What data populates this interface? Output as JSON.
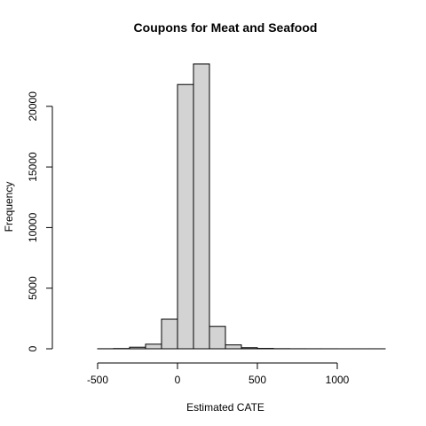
{
  "chart_data": {
    "type": "bar",
    "subtype": "histogram",
    "title": "Coupons for Meat and Seafood",
    "xlabel": "Estimated CATE",
    "ylabel": "Frequency",
    "bin_width": 100,
    "bins": [
      {
        "x0": -700,
        "x1": -600,
        "count": 0
      },
      {
        "x0": -600,
        "x1": -500,
        "count": 0
      },
      {
        "x0": -500,
        "x1": -400,
        "count": 5
      },
      {
        "x0": -400,
        "x1": -300,
        "count": 20
      },
      {
        "x0": -300,
        "x1": -200,
        "count": 130
      },
      {
        "x0": -200,
        "x1": -100,
        "count": 380
      },
      {
        "x0": -100,
        "x1": 0,
        "count": 2450
      },
      {
        "x0": 0,
        "x1": 100,
        "count": 21800
      },
      {
        "x0": 100,
        "x1": 200,
        "count": 23500
      },
      {
        "x0": 200,
        "x1": 300,
        "count": 1850
      },
      {
        "x0": 300,
        "x1": 400,
        "count": 320
      },
      {
        "x0": 400,
        "x1": 500,
        "count": 90
      },
      {
        "x0": 500,
        "x1": 600,
        "count": 30
      },
      {
        "x0": 600,
        "x1": 700,
        "count": 10
      },
      {
        "x0": 700,
        "x1": 800,
        "count": 5
      },
      {
        "x0": 800,
        "x1": 900,
        "count": 3
      },
      {
        "x0": 900,
        "x1": 1000,
        "count": 2
      },
      {
        "x0": 1000,
        "x1": 1100,
        "count": 1
      },
      {
        "x0": 1100,
        "x1": 1200,
        "count": 1
      },
      {
        "x0": 1200,
        "x1": 1300,
        "count": 1
      }
    ],
    "xlim": [
      -700,
      1300
    ],
    "ylim": [
      0,
      23500
    ],
    "x_ticks": [
      -500,
      0,
      500,
      1000
    ],
    "y_ticks": [
      0,
      5000,
      10000,
      15000,
      20000
    ],
    "bar_fill": "#d3d3d3",
    "bar_stroke": "#000000",
    "grid": false,
    "legend": "none"
  }
}
